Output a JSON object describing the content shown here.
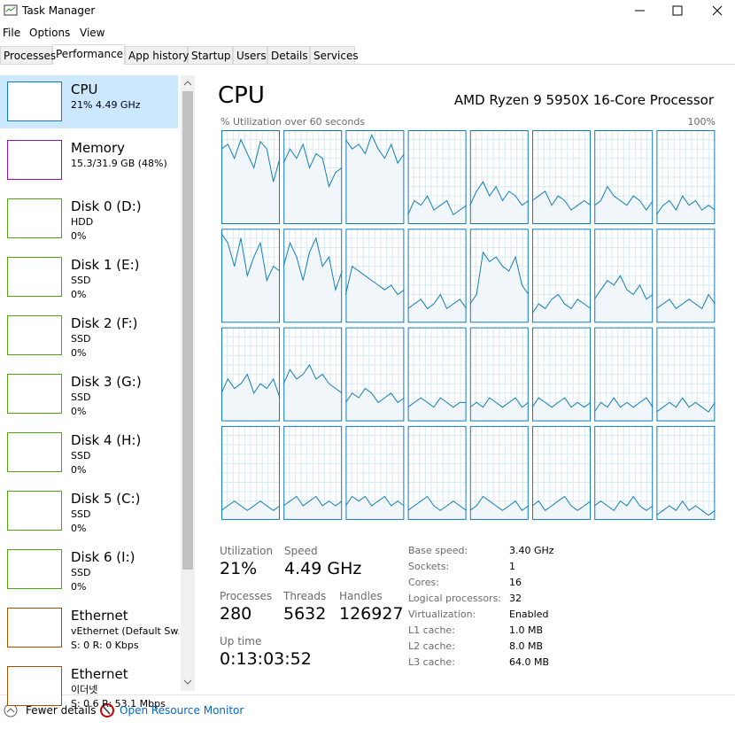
{
  "window": {
    "title": "Task Manager"
  },
  "menu": [
    "File",
    "Options",
    "View"
  ],
  "tabs": [
    "Processes",
    "Performance",
    "App history",
    "Startup",
    "Users",
    "Details",
    "Services"
  ],
  "active_tab": 1,
  "sidebar": [
    {
      "name": "CPU",
      "lines": [
        "21% 4.49 GHz"
      ],
      "color": "#117dbb",
      "selected": true
    },
    {
      "name": "Memory",
      "lines": [
        "15.3/31.9 GB (48%)"
      ],
      "color": "#8b12ae"
    },
    {
      "name": "Disk 0 (D:)",
      "lines": [
        "HDD",
        "0%"
      ],
      "color": "#4da60c"
    },
    {
      "name": "Disk 1 (E:)",
      "lines": [
        "SSD",
        "0%"
      ],
      "color": "#4da60c"
    },
    {
      "name": "Disk 2 (F:)",
      "lines": [
        "SSD",
        "0%"
      ],
      "color": "#4da60c"
    },
    {
      "name": "Disk 3 (G:)",
      "lines": [
        "SSD",
        "0%"
      ],
      "color": "#4da60c"
    },
    {
      "name": "Disk 4 (H:)",
      "lines": [
        "SSD",
        "0%"
      ],
      "color": "#4da60c"
    },
    {
      "name": "Disk 5 (C:)",
      "lines": [
        "SSD",
        "0%"
      ],
      "color": "#4da60c"
    },
    {
      "name": "Disk 6 (I:)",
      "lines": [
        "SSD",
        "0%"
      ],
      "color": "#4da60c"
    },
    {
      "name": "Ethernet",
      "lines": [
        "vEthernet (Default Sw...",
        "S: 0 R: 0 Kbps"
      ],
      "color": "#a74f01"
    },
    {
      "name": "Ethernet",
      "lines": [
        "이더넷",
        "S: 0.6 R: 53.1 Mbps"
      ],
      "color": "#a74f01"
    }
  ],
  "cpu": {
    "title": "CPU",
    "model": "AMD Ryzen 9 5950X 16-Core Processor",
    "graph_label": "% Utilization over 60 seconds",
    "graph_max": "100%",
    "ylim": [
      0,
      100
    ],
    "line_color": "#117dbb",
    "cores": [
      [
        80,
        85,
        70,
        90,
        75,
        60,
        88,
        80,
        45,
        70
      ],
      [
        65,
        80,
        70,
        85,
        60,
        75,
        70,
        40,
        55,
        60
      ],
      [
        90,
        80,
        85,
        75,
        95,
        80,
        70,
        85,
        65,
        75
      ],
      [
        10,
        25,
        20,
        30,
        15,
        20,
        25,
        10,
        15,
        20
      ],
      [
        20,
        35,
        45,
        30,
        40,
        25,
        35,
        30,
        20,
        25
      ],
      [
        25,
        30,
        35,
        20,
        30,
        25,
        15,
        20,
        25,
        20
      ],
      [
        20,
        25,
        40,
        30,
        25,
        20,
        30,
        25,
        15,
        25
      ],
      [
        10,
        20,
        25,
        15,
        30,
        20,
        25,
        15,
        20,
        15
      ],
      [
        95,
        85,
        60,
        90,
        50,
        70,
        85,
        45,
        60,
        55
      ],
      [
        60,
        85,
        70,
        45,
        75,
        90,
        60,
        70,
        35,
        55
      ],
      [
        30,
        60,
        55,
        50,
        45,
        40,
        35,
        40,
        30,
        35
      ],
      [
        15,
        20,
        25,
        15,
        20,
        30,
        15,
        20,
        25,
        15
      ],
      [
        20,
        30,
        75,
        65,
        70,
        60,
        55,
        70,
        40,
        30
      ],
      [
        10,
        20,
        15,
        25,
        30,
        20,
        15,
        25,
        20,
        15
      ],
      [
        25,
        35,
        45,
        40,
        50,
        35,
        30,
        40,
        25,
        30
      ],
      [
        15,
        20,
        25,
        15,
        20,
        25,
        20,
        15,
        30,
        20
      ],
      [
        30,
        45,
        35,
        40,
        50,
        30,
        40,
        35,
        45,
        25
      ],
      [
        40,
        55,
        45,
        50,
        60,
        45,
        50,
        40,
        35,
        30
      ],
      [
        20,
        30,
        25,
        35,
        30,
        20,
        25,
        30,
        20,
        25
      ],
      [
        15,
        20,
        25,
        20,
        15,
        25,
        20,
        15,
        20,
        20
      ],
      [
        15,
        20,
        15,
        25,
        20,
        15,
        20,
        25,
        15,
        20
      ],
      [
        15,
        25,
        20,
        15,
        20,
        25,
        15,
        20,
        15,
        20
      ],
      [
        10,
        20,
        15,
        25,
        15,
        20,
        15,
        20,
        25,
        15
      ],
      [
        10,
        15,
        20,
        15,
        25,
        15,
        20,
        15,
        10,
        20
      ],
      [
        10,
        15,
        20,
        15,
        10,
        15,
        20,
        15,
        10,
        15
      ],
      [
        15,
        20,
        25,
        15,
        20,
        25,
        15,
        20,
        15,
        20
      ],
      [
        15,
        25,
        20,
        25,
        15,
        20,
        25,
        15,
        20,
        15
      ],
      [
        10,
        15,
        20,
        25,
        15,
        10,
        15,
        20,
        15,
        10
      ],
      [
        10,
        15,
        25,
        20,
        15,
        10,
        15,
        20,
        10,
        15
      ],
      [
        15,
        20,
        10,
        15,
        20,
        25,
        15,
        10,
        15,
        20
      ],
      [
        15,
        20,
        15,
        10,
        20,
        15,
        25,
        15,
        10,
        15
      ],
      [
        5,
        10,
        15,
        10,
        20,
        10,
        15,
        10,
        5,
        10
      ]
    ],
    "stats": [
      {
        "label": "Utilization",
        "value": "21%"
      },
      {
        "label": "Speed",
        "value": "4.49 GHz"
      },
      {
        "label": "Processes",
        "value": "280"
      },
      {
        "label": "Threads",
        "value": "5632"
      },
      {
        "label": "Handles",
        "value": "126927"
      },
      {
        "label": "Up time",
        "value": "0:13:03:52"
      }
    ],
    "details": [
      [
        "Base speed:",
        "3.40 GHz"
      ],
      [
        "Sockets:",
        "1"
      ],
      [
        "Cores:",
        "16"
      ],
      [
        "Logical processors:",
        "32"
      ],
      [
        "Virtualization:",
        "Enabled"
      ],
      [
        "L1 cache:",
        "1.0 MB"
      ],
      [
        "L2 cache:",
        "8.0 MB"
      ],
      [
        "L3 cache:",
        "64.0 MB"
      ]
    ]
  },
  "footer": {
    "fewer": "Fewer details",
    "monitor": "Open Resource Monitor"
  }
}
